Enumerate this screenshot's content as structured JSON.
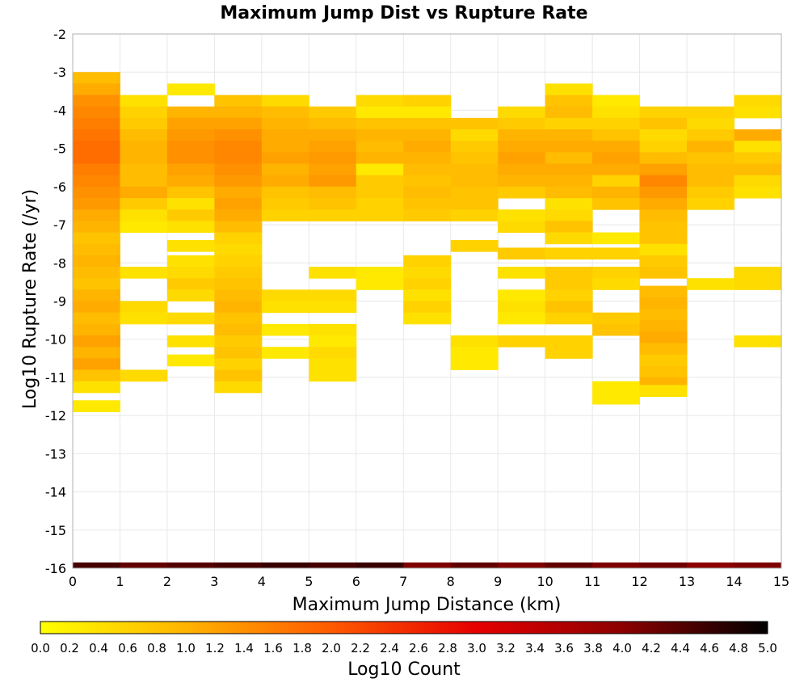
{
  "chart_data": {
    "type": "heatmap",
    "title": "Maximum Jump Dist vs Rupture Rate",
    "xlabel": "Maximum Jump Distance (km)",
    "ylabel": "Log10 Rupture Rate (/yr)",
    "xlim": [
      0,
      15
    ],
    "ylim": [
      -16,
      -2
    ],
    "x_ticks": [
      "0",
      "1",
      "2",
      "3",
      "4",
      "5",
      "6",
      "7",
      "8",
      "9",
      "10",
      "11",
      "12",
      "13",
      "14",
      "15"
    ],
    "y_ticks": [
      "-2",
      "-3",
      "-4",
      "-5",
      "-6",
      "-7",
      "-8",
      "-9",
      "-10",
      "-11",
      "-12",
      "-13",
      "-14",
      "-15",
      "-16"
    ],
    "grid": true,
    "bin_width_x": 1,
    "bin_height_y": 0.3,
    "colorbar": {
      "label": "Log10 Count",
      "min": 0,
      "max": 5,
      "ticks": [
        "0.0",
        "0.2",
        "0.4",
        "0.6",
        "0.8",
        "1.0",
        "1.2",
        "1.4",
        "1.6",
        "1.8",
        "2.0",
        "2.2",
        "2.4",
        "2.6",
        "2.8",
        "3.0",
        "3.2",
        "3.4",
        "3.6",
        "3.8",
        "4.0",
        "4.2",
        "4.4",
        "4.6",
        "4.8",
        "5.0"
      ],
      "colors": [
        "#ffff00",
        "#ffb400",
        "#ff5a00",
        "#e60000",
        "#8c0000",
        "#000000"
      ]
    },
    "bottom_row": {
      "y_bottom": -16.0,
      "y_top": -15.85,
      "values": [
        4.5,
        4.3,
        4.4,
        4.5,
        4.6,
        4.5,
        4.6,
        4.1,
        4.3,
        4.1,
        4.3,
        4.1,
        4.2,
        4.0,
        4.1
      ]
    },
    "columns": [
      {
        "x": 0,
        "cells": [
          [
            -3.0,
            0.9
          ],
          [
            -3.3,
            1.1
          ],
          [
            -3.6,
            1.4
          ],
          [
            -3.9,
            1.5
          ],
          [
            -4.2,
            1.6
          ],
          [
            -4.5,
            1.7
          ],
          [
            -4.8,
            1.8
          ],
          [
            -5.1,
            1.8
          ],
          [
            -5.4,
            1.6
          ],
          [
            -5.7,
            1.5
          ],
          [
            -6.0,
            1.4
          ],
          [
            -6.3,
            1.3
          ],
          [
            -6.6,
            1.1
          ],
          [
            -6.9,
            1.0
          ],
          [
            -7.2,
            0.8
          ],
          [
            -7.5,
            0.9
          ],
          [
            -7.8,
            1.0
          ],
          [
            -8.1,
            0.9
          ],
          [
            -8.4,
            0.8
          ],
          [
            -8.7,
            1.0
          ],
          [
            -9.0,
            1.1
          ],
          [
            -9.3,
            0.9
          ],
          [
            -9.6,
            1.0
          ],
          [
            -9.9,
            1.2
          ],
          [
            -10.2,
            1.0
          ],
          [
            -10.5,
            1.2
          ],
          [
            -10.8,
            0.8
          ],
          [
            -11.1,
            0.4
          ],
          [
            -11.6,
            0.3
          ]
        ]
      },
      {
        "x": 1,
        "cells": [
          [
            -3.6,
            0.4
          ],
          [
            -3.9,
            0.6
          ],
          [
            -4.2,
            0.7
          ],
          [
            -4.5,
            0.9
          ],
          [
            -4.8,
            1.0
          ],
          [
            -5.1,
            1.0
          ],
          [
            -5.4,
            0.9
          ],
          [
            -5.7,
            0.9
          ],
          [
            -6.0,
            1.1
          ],
          [
            -6.3,
            0.7
          ],
          [
            -6.6,
            0.4
          ],
          [
            -6.9,
            0.3
          ],
          [
            -8.1,
            0.4
          ],
          [
            -9.0,
            0.5
          ],
          [
            -9.3,
            0.4
          ],
          [
            -10.8,
            0.5
          ]
        ]
      },
      {
        "x": 2,
        "cells": [
          [
            -3.3,
            0.3
          ],
          [
            -3.9,
            1.0
          ],
          [
            -4.2,
            1.2
          ],
          [
            -4.5,
            1.3
          ],
          [
            -4.8,
            1.4
          ],
          [
            -5.1,
            1.4
          ],
          [
            -5.4,
            1.2
          ],
          [
            -5.7,
            1.1
          ],
          [
            -6.0,
            0.8
          ],
          [
            -6.3,
            0.4
          ],
          [
            -6.6,
            0.7
          ],
          [
            -6.9,
            0.4
          ],
          [
            -7.4,
            0.4
          ],
          [
            -7.8,
            0.4
          ],
          [
            -8.1,
            0.5
          ],
          [
            -8.4,
            0.7
          ],
          [
            -8.7,
            0.5
          ],
          [
            -9.3,
            0.5
          ],
          [
            -9.9,
            0.4
          ],
          [
            -10.4,
            0.3
          ]
        ]
      },
      {
        "x": 3,
        "cells": [
          [
            -3.6,
            0.8
          ],
          [
            -3.9,
            1.0
          ],
          [
            -4.2,
            1.2
          ],
          [
            -4.5,
            1.4
          ],
          [
            -4.8,
            1.5
          ],
          [
            -5.1,
            1.5
          ],
          [
            -5.4,
            1.4
          ],
          [
            -5.7,
            1.3
          ],
          [
            -6.0,
            1.1
          ],
          [
            -6.3,
            1.2
          ],
          [
            -6.6,
            1.1
          ],
          [
            -6.9,
            0.9
          ],
          [
            -7.2,
            0.6
          ],
          [
            -7.5,
            0.5
          ],
          [
            -7.8,
            0.6
          ],
          [
            -8.1,
            0.7
          ],
          [
            -8.4,
            0.8
          ],
          [
            -8.7,
            0.9
          ],
          [
            -9.0,
            1.0
          ],
          [
            -9.3,
            0.8
          ],
          [
            -9.6,
            0.9
          ],
          [
            -9.9,
            0.7
          ],
          [
            -10.2,
            0.8
          ],
          [
            -10.5,
            0.6
          ],
          [
            -10.8,
            0.8
          ],
          [
            -11.1,
            0.5
          ]
        ]
      },
      {
        "x": 4,
        "cells": [
          [
            -3.6,
            0.5
          ],
          [
            -3.9,
            0.9
          ],
          [
            -4.2,
            1.0
          ],
          [
            -4.5,
            1.1
          ],
          [
            -4.8,
            1.1
          ],
          [
            -5.1,
            1.2
          ],
          [
            -5.4,
            1.0
          ],
          [
            -5.7,
            1.1
          ],
          [
            -6.0,
            0.8
          ],
          [
            -6.3,
            0.7
          ],
          [
            -6.6,
            0.6
          ],
          [
            -8.7,
            0.5
          ],
          [
            -9.0,
            0.4
          ],
          [
            -9.6,
            0.3
          ],
          [
            -10.2,
            0.3
          ]
        ]
      },
      {
        "x": 5,
        "cells": [
          [
            -3.9,
            0.7
          ],
          [
            -4.2,
            0.9
          ],
          [
            -4.5,
            1.1
          ],
          [
            -4.8,
            1.2
          ],
          [
            -5.1,
            1.3
          ],
          [
            -5.4,
            1.2
          ],
          [
            -5.7,
            1.3
          ],
          [
            -6.0,
            0.9
          ],
          [
            -6.3,
            0.8
          ],
          [
            -6.6,
            0.6
          ],
          [
            -8.1,
            0.4
          ],
          [
            -8.7,
            0.5
          ],
          [
            -9.0,
            0.4
          ],
          [
            -9.6,
            0.4
          ],
          [
            -9.9,
            0.3
          ],
          [
            -10.2,
            0.5
          ],
          [
            -10.5,
            0.4
          ],
          [
            -10.8,
            0.4
          ]
        ]
      },
      {
        "x": 6,
        "cells": [
          [
            -3.6,
            0.5
          ],
          [
            -3.9,
            0.3
          ],
          [
            -4.2,
            0.8
          ],
          [
            -4.5,
            1.0
          ],
          [
            -4.8,
            0.9
          ],
          [
            -5.1,
            1.0
          ],
          [
            -5.4,
            0.3
          ],
          [
            -5.7,
            0.7
          ],
          [
            -6.0,
            0.7
          ],
          [
            -6.3,
            0.6
          ],
          [
            -6.6,
            0.6
          ],
          [
            -8.1,
            0.3
          ],
          [
            -8.4,
            0.3
          ]
        ]
      },
      {
        "x": 7,
        "cells": [
          [
            -3.6,
            0.6
          ],
          [
            -3.9,
            0.3
          ],
          [
            -4.2,
            0.8
          ],
          [
            -4.5,
            1.0
          ],
          [
            -4.8,
            1.1
          ],
          [
            -5.1,
            1.0
          ],
          [
            -5.4,
            0.9
          ],
          [
            -5.7,
            0.8
          ],
          [
            -6.0,
            0.9
          ],
          [
            -6.3,
            0.8
          ],
          [
            -6.6,
            0.7
          ],
          [
            -7.8,
            0.6
          ],
          [
            -8.1,
            0.5
          ],
          [
            -8.4,
            0.6
          ],
          [
            -8.7,
            0.4
          ],
          [
            -9.0,
            0.6
          ],
          [
            -9.3,
            0.4
          ]
        ]
      },
      {
        "x": 8,
        "cells": [
          [
            -4.2,
            0.8
          ],
          [
            -4.5,
            0.5
          ],
          [
            -4.8,
            0.7
          ],
          [
            -5.1,
            0.8
          ],
          [
            -5.4,
            0.9
          ],
          [
            -5.7,
            0.9
          ],
          [
            -6.0,
            0.8
          ],
          [
            -6.3,
            0.8
          ],
          [
            -6.6,
            0.6
          ],
          [
            -7.4,
            0.6
          ],
          [
            -9.9,
            0.4
          ],
          [
            -10.2,
            0.3
          ],
          [
            -10.5,
            0.3
          ]
        ]
      },
      {
        "x": 9,
        "cells": [
          [
            -3.9,
            0.5
          ],
          [
            -4.2,
            0.7
          ],
          [
            -4.5,
            1.0
          ],
          [
            -4.8,
            1.1
          ],
          [
            -5.1,
            1.2
          ],
          [
            -5.4,
            1.1
          ],
          [
            -5.7,
            1.0
          ],
          [
            -6.0,
            0.7
          ],
          [
            -6.6,
            0.4
          ],
          [
            -6.9,
            0.5
          ],
          [
            -7.6,
            0.7
          ],
          [
            -8.1,
            0.4
          ],
          [
            -8.7,
            0.3
          ],
          [
            -9.0,
            0.4
          ],
          [
            -9.3,
            0.3
          ],
          [
            -9.9,
            0.6
          ]
        ]
      },
      {
        "x": 10,
        "cells": [
          [
            -3.3,
            0.4
          ],
          [
            -3.6,
            0.8
          ],
          [
            -3.9,
            0.9
          ],
          [
            -4.2,
            0.6
          ],
          [
            -4.5,
            1.0
          ],
          [
            -4.8,
            1.1
          ],
          [
            -5.1,
            0.9
          ],
          [
            -5.4,
            1.1
          ],
          [
            -5.7,
            1.0
          ],
          [
            -6.0,
            0.9
          ],
          [
            -6.3,
            0.4
          ],
          [
            -6.6,
            0.5
          ],
          [
            -6.9,
            0.8
          ],
          [
            -7.2,
            0.5
          ],
          [
            -7.6,
            0.6
          ],
          [
            -8.1,
            0.7
          ],
          [
            -8.4,
            0.7
          ],
          [
            -8.7,
            0.6
          ],
          [
            -9.0,
            0.8
          ],
          [
            -9.3,
            0.6
          ],
          [
            -9.9,
            0.6
          ],
          [
            -10.2,
            0.6
          ]
        ]
      },
      {
        "x": 11,
        "cells": [
          [
            -3.6,
            0.3
          ],
          [
            -3.9,
            0.4
          ],
          [
            -4.2,
            0.6
          ],
          [
            -4.5,
            0.8
          ],
          [
            -4.8,
            1.1
          ],
          [
            -5.1,
            1.2
          ],
          [
            -5.4,
            1.1
          ],
          [
            -5.7,
            0.6
          ],
          [
            -6.0,
            1.0
          ],
          [
            -6.3,
            0.8
          ],
          [
            -7.2,
            0.3
          ],
          [
            -7.6,
            0.6
          ],
          [
            -8.1,
            0.6
          ],
          [
            -8.4,
            0.5
          ],
          [
            -9.3,
            0.7
          ],
          [
            -9.6,
            0.8
          ],
          [
            -11.1,
            0.3
          ],
          [
            -11.4,
            0.3
          ]
        ]
      },
      {
        "x": 12,
        "cells": [
          [
            -3.9,
            0.6
          ],
          [
            -4.2,
            0.8
          ],
          [
            -4.5,
            0.5
          ],
          [
            -4.8,
            0.6
          ],
          [
            -5.1,
            0.9
          ],
          [
            -5.4,
            1.2
          ],
          [
            -5.7,
            1.5
          ],
          [
            -6.0,
            1.3
          ],
          [
            -6.3,
            1.1
          ],
          [
            -6.6,
            0.9
          ],
          [
            -6.9,
            0.8
          ],
          [
            -7.2,
            0.8
          ],
          [
            -7.5,
            0.4
          ],
          [
            -7.8,
            0.7
          ],
          [
            -8.1,
            0.8
          ],
          [
            -8.6,
            0.9
          ],
          [
            -8.9,
            1.0
          ],
          [
            -9.2,
            0.9
          ],
          [
            -9.5,
            1.0
          ],
          [
            -9.8,
            1.1
          ],
          [
            -10.1,
            0.9
          ],
          [
            -10.4,
            0.7
          ],
          [
            -10.7,
            0.8
          ],
          [
            -11.0,
            1.0
          ],
          [
            -11.2,
            0.4
          ]
        ]
      },
      {
        "x": 13,
        "cells": [
          [
            -3.9,
            0.6
          ],
          [
            -4.2,
            0.5
          ],
          [
            -4.5,
            0.7
          ],
          [
            -4.8,
            1.0
          ],
          [
            -5.1,
            0.8
          ],
          [
            -5.4,
            0.9
          ],
          [
            -5.7,
            0.9
          ],
          [
            -6.0,
            0.7
          ],
          [
            -6.3,
            0.6
          ],
          [
            -8.4,
            0.4
          ]
        ]
      },
      {
        "x": 14,
        "cells": [
          [
            -3.6,
            0.5
          ],
          [
            -3.9,
            0.4
          ],
          [
            -4.5,
            1.1
          ],
          [
            -4.8,
            0.4
          ],
          [
            -5.1,
            0.7
          ],
          [
            -5.4,
            0.9
          ],
          [
            -5.7,
            0.5
          ],
          [
            -6.0,
            0.4
          ],
          [
            -8.1,
            0.5
          ],
          [
            -8.4,
            0.5
          ],
          [
            -9.9,
            0.4
          ]
        ]
      }
    ]
  }
}
